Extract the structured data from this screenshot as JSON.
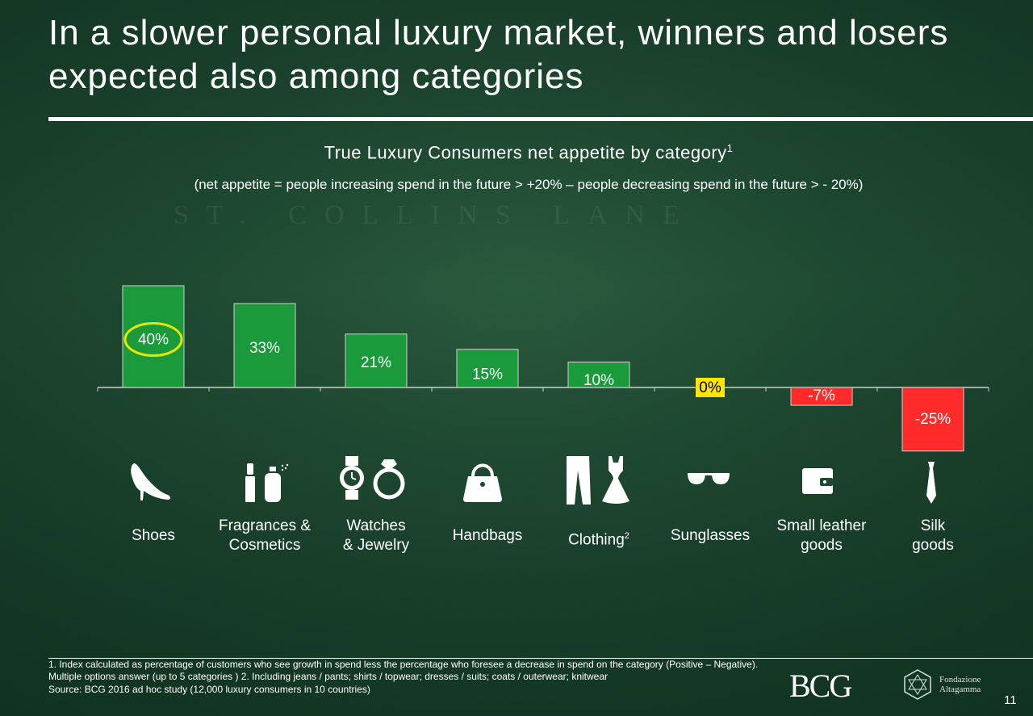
{
  "title": "In a slower personal luxury market, winners and losers expected also among categories",
  "chart_data": {
    "type": "bar",
    "title": "True Luxury Consumers net appetite by category",
    "title_superscript": "1",
    "subtitle": "(net appetite = people increasing spend in the future > +20% – people decreasing spend in the future > - 20%)",
    "categories": [
      "Shoes",
      "Fragrances & Cosmetics",
      "Watches & Jewelry",
      "Handbags",
      "Clothing",
      "Sunglasses",
      "Small leather goods",
      "Silk goods"
    ],
    "category_lines": [
      [
        "Shoes"
      ],
      [
        "Fragrances &",
        "Cosmetics"
      ],
      [
        "Watches",
        "& Jewelry"
      ],
      [
        "Handbags"
      ],
      [
        "Clothing"
      ],
      [
        "Sunglasses"
      ],
      [
        "Small leather",
        "goods"
      ],
      [
        "Silk",
        "goods"
      ]
    ],
    "category_superscripts": [
      "",
      "",
      "",
      "",
      "2",
      "",
      "",
      ""
    ],
    "icons": [
      "shoe-icon",
      "perfume-lipstick-icon",
      "watch-ring-icon",
      "handbag-icon",
      "clothing-icon",
      "sunglasses-icon",
      "wallet-icon",
      "tie-icon"
    ],
    "values": [
      40,
      33,
      21,
      15,
      10,
      0,
      -7,
      -25
    ],
    "data_labels": [
      "40%",
      "33%",
      "21%",
      "15%",
      "10%",
      "0%",
      "-7%",
      "-25%"
    ],
    "colors": {
      "positive": "#1a9a3a",
      "zero": "#ffe600",
      "negative": "#ff2a2a",
      "highlight_circle": "#e6e600"
    },
    "highlighted_category": "Shoes",
    "ylim": [
      -25,
      40
    ],
    "grid": false,
    "legend": "none"
  },
  "footnotes": [
    "1. Index calculated as percentage of customers who see growth in spend less the percentage who foresee a decrease in spend on the category (Positive – Negative).",
    "Multiple options answer (up to 5 categories )    2. Including jeans / pants; shirts / topwear; dresses / suits; coats / outerwear; knitwear",
    "Source: BCG 2016 ad hoc study (12,000 luxury consumers in 10 countries)"
  ],
  "logos": {
    "bcg": "BCG",
    "altagamma": [
      "Fondazione",
      "Altagamma"
    ]
  },
  "page_number": "11"
}
